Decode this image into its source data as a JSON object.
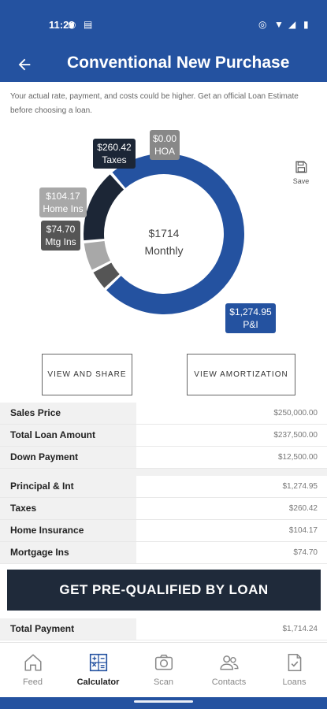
{
  "status_bar": {
    "time": "11:29"
  },
  "header": {
    "title": "Conventional New Purchase",
    "back_icon": "arrow-left-icon"
  },
  "disclaimer": "Your actual rate, payment, and costs could be higher. Get an official Loan Estimate before choosing a loan.",
  "chart_data": {
    "type": "pie",
    "subtype": "donut",
    "center": {
      "value": "$1714",
      "label": "Monthly"
    },
    "slices": [
      {
        "key": "pi",
        "amount": "$1,274.95",
        "name": "P&I",
        "value": 1274.95,
        "color": "#2452a0"
      },
      {
        "key": "mtg",
        "amount": "$74.70",
        "name": "Mtg Ins",
        "value": 74.7,
        "color": "#555555"
      },
      {
        "key": "home",
        "amount": "$104.17",
        "name": "Home Ins",
        "value": 104.17,
        "color": "#a8a8a8"
      },
      {
        "key": "taxes",
        "amount": "$260.42",
        "name": "Taxes",
        "value": 260.42,
        "color": "#1c2636"
      },
      {
        "key": "hoa",
        "amount": "$0.00",
        "name": "HOA",
        "value": 0.0,
        "color": "#888888"
      }
    ]
  },
  "actions": {
    "save": "Save",
    "view_share": "VIEW AND SHARE",
    "view_amortization": "VIEW AMORTIZATION"
  },
  "loan_rows": [
    {
      "label": "Sales Price",
      "value": "$250,000.00"
    },
    {
      "label": "Total Loan Amount",
      "value": "$237,500.00"
    },
    {
      "label": "Down Payment",
      "value": "$12,500.00"
    }
  ],
  "payment_rows": [
    {
      "label": "Principal & Int",
      "value": "$1,274.95"
    },
    {
      "label": "Taxes",
      "value": "$260.42"
    },
    {
      "label": "Home Insurance",
      "value": "$104.17"
    },
    {
      "label": "Mortgage Ins",
      "value": "$74.70"
    }
  ],
  "cta": {
    "label": "GET PRE-QUALIFIED BY LOAN"
  },
  "total_row": {
    "label": "Total Payment",
    "value": "$1,714.24"
  },
  "nav": {
    "items": [
      {
        "label": "Feed",
        "icon": "home-icon"
      },
      {
        "label": "Calculator",
        "icon": "calculator-icon",
        "active": true
      },
      {
        "label": "Scan",
        "icon": "camera-icon"
      },
      {
        "label": "Contacts",
        "icon": "contacts-icon"
      },
      {
        "label": "Loans",
        "icon": "document-check-icon"
      }
    ]
  }
}
